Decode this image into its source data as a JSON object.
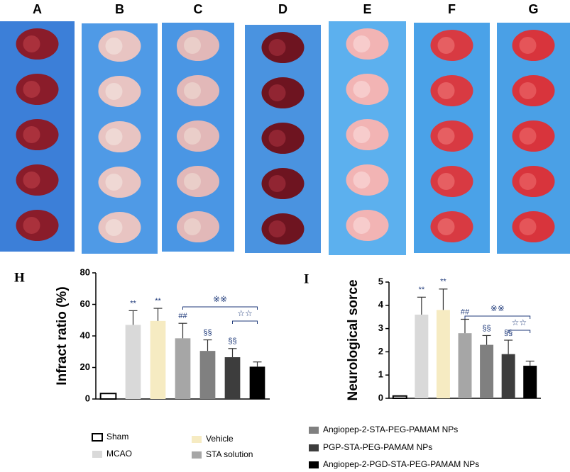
{
  "photo_panels": {
    "labels": [
      "A",
      "B",
      "C",
      "D",
      "E",
      "F",
      "G"
    ]
  },
  "chart_data": [
    {
      "type": "bar",
      "panel_label": "H",
      "ylabel": "Infract ratio (%)",
      "categories": [
        null
      ],
      "ylim": [
        0,
        80
      ],
      "yticks": [
        0,
        20,
        40,
        60,
        80
      ],
      "series": [
        {
          "name": "Sham",
          "color": "#ffffff",
          "values": [
            3.5
          ],
          "errors": [
            0
          ]
        },
        {
          "name": "MCAO",
          "color": "#d9d9d9",
          "values": [
            47
          ],
          "errors": [
            9
          ],
          "sig": "**"
        },
        {
          "name": "Vehicle",
          "color": "#f6ebc2",
          "values": [
            49.5
          ],
          "errors": [
            8
          ],
          "sig": "**"
        },
        {
          "name": "STA solution",
          "color": "#a6a6a6",
          "values": [
            38.5
          ],
          "errors": [
            9.5
          ],
          "sig": "##"
        },
        {
          "name": "Angiopep-2-STA-PEG-PAMAM NPs",
          "color": "#808080",
          "values": [
            30.5
          ],
          "errors": [
            7
          ],
          "sig": "§§"
        },
        {
          "name": "PGP-STA-PEG-PAMAM NPs",
          "color": "#3d3d3d",
          "values": [
            26.5
          ],
          "errors": [
            5.5
          ],
          "sig": "§§"
        },
        {
          "name": "Angiopep-2-PGD-STA-PEG-PAMAM NPs",
          "color": "#000000",
          "values": [
            20.5
          ],
          "errors": [
            3
          ]
        }
      ],
      "comparisons": [
        {
          "label": "※※",
          "between": [
            "STA solution",
            "Angiopep-2-PGD-STA-PEG-PAMAM NPs"
          ]
        },
        {
          "label": "☆☆",
          "between": [
            "PGP-STA-PEG-PAMAM NPs",
            "Angiopep-2-PGD-STA-PEG-PAMAM NPs"
          ]
        }
      ]
    },
    {
      "type": "bar",
      "panel_label": "I",
      "ylabel": "Neurological sorce",
      "categories": [
        null
      ],
      "ylim": [
        0,
        5
      ],
      "yticks": [
        0,
        1,
        2,
        3,
        4,
        5
      ],
      "series": [
        {
          "name": "Sham",
          "color": "#ffffff",
          "values": [
            0.1
          ],
          "errors": [
            0
          ]
        },
        {
          "name": "MCAO",
          "color": "#d9d9d9",
          "values": [
            3.6
          ],
          "errors": [
            0.75
          ],
          "sig": "**"
        },
        {
          "name": "Vehicle",
          "color": "#f6ebc2",
          "values": [
            3.8
          ],
          "errors": [
            0.9
          ],
          "sig": "**"
        },
        {
          "name": "STA solution",
          "color": "#a6a6a6",
          "values": [
            2.8
          ],
          "errors": [
            0.6
          ],
          "sig": "##"
        },
        {
          "name": "Angiopep-2-STA-PEG-PAMAM NPs",
          "color": "#808080",
          "values": [
            2.3
          ],
          "errors": [
            0.4
          ],
          "sig": "§§"
        },
        {
          "name": "PGP-STA-PEG-PAMAM NPs",
          "color": "#3d3d3d",
          "values": [
            1.9
          ],
          "errors": [
            0.6
          ],
          "sig": "§§"
        },
        {
          "name": "Angiopep-2-PGD-STA-PEG-PAMAM NPs",
          "color": "#000000",
          "values": [
            1.4
          ],
          "errors": [
            0.2
          ]
        }
      ],
      "comparisons": [
        {
          "label": "※※",
          "between": [
            "STA solution",
            "Angiopep-2-PGD-STA-PEG-PAMAM NPs"
          ]
        },
        {
          "label": "☆☆",
          "between": [
            "PGP-STA-PEG-PAMAM NPs",
            "Angiopep-2-PGD-STA-PEG-PAMAM NPs"
          ]
        }
      ]
    }
  ]
}
